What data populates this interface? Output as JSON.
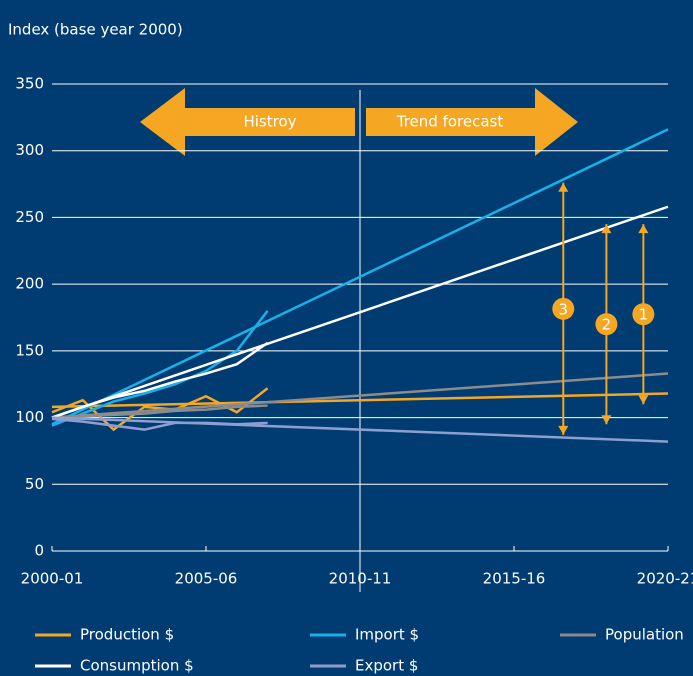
{
  "chart_data": {
    "type": "line",
    "y_axis_label": "Index (base year 2000)",
    "xlim": [
      0,
      20
    ],
    "xticks": [
      {
        "value": 0,
        "label": "2000-01"
      },
      {
        "value": 5,
        "label": "2005-06"
      },
      {
        "value": 10,
        "label": "2010-11"
      },
      {
        "value": 15,
        "label": "2015-16"
      },
      {
        "value": 20,
        "label": "2020-21"
      }
    ],
    "ylim": [
      0,
      350
    ],
    "yticks": [
      0,
      50,
      100,
      150,
      200,
      250,
      300,
      350
    ],
    "grid": true,
    "divider_x": 10,
    "history_label": "Histroy",
    "forecast_label": "Trend forecast",
    "x": [
      0,
      1,
      2,
      3,
      4,
      5,
      6,
      7
    ],
    "trend_x": [
      0,
      20
    ],
    "series": [
      {
        "name": "Production $",
        "color": "#f5a623",
        "values": [
          104,
          113,
          91,
          108,
          106,
          116,
          104,
          122
        ],
        "trend": [
          108,
          118
        ]
      },
      {
        "name": "Import $",
        "color": "#1ab0e8",
        "values": [
          94,
          103,
          112,
          118,
          125,
          135,
          150,
          180
        ],
        "trend": [
          95,
          316
        ]
      },
      {
        "name": "Population",
        "color": "#8c8c8c",
        "values": [
          100,
          101,
          102,
          103,
          105,
          106,
          108,
          109
        ],
        "trend": [
          100,
          133
        ]
      },
      {
        "name": "Consumption $",
        "color": "#ffffff",
        "values": [
          100,
          108,
          115,
          120,
          127,
          133,
          140,
          156
        ],
        "trend": [
          100,
          258
        ]
      },
      {
        "name": "Export $",
        "color": "#8d9fd0",
        "values": [
          99,
          97,
          94,
          91,
          96,
          96,
          95,
          96
        ],
        "trend": [
          100,
          82
        ]
      }
    ],
    "annotations": [
      {
        "label": "3",
        "x": 16.6,
        "from": 87,
        "to": 276
      },
      {
        "label": "2",
        "x": 18,
        "from": 95,
        "to": 245
      },
      {
        "label": "1",
        "x": 19.2,
        "from": 110,
        "to": 245
      }
    ]
  }
}
